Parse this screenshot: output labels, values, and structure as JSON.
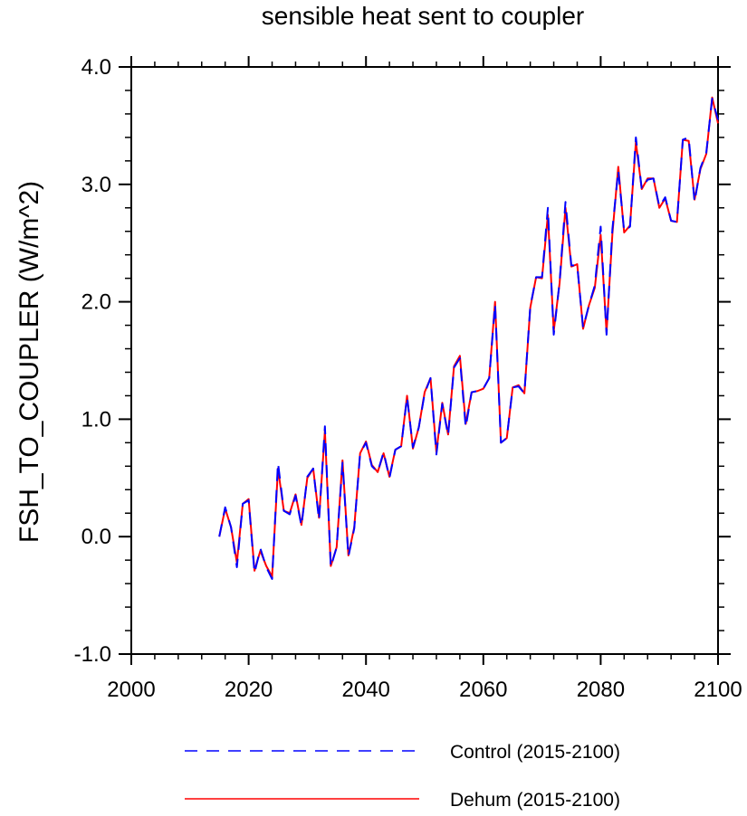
{
  "chart_data": {
    "type": "line",
    "title": "sensible heat sent to coupler",
    "xlabel": "",
    "ylabel": "FSH_TO_COUPLER  (W/m^2)",
    "xlim": [
      2000,
      2100
    ],
    "ylim": [
      -1.0,
      4.0
    ],
    "xticks": [
      2000,
      2020,
      2040,
      2060,
      2080,
      2100
    ],
    "xtick_labels": [
      "2000",
      "2020",
      "2040",
      "2060",
      "2080",
      "2100"
    ],
    "yticks": [
      -1.0,
      0.0,
      1.0,
      2.0,
      3.0,
      4.0
    ],
    "ytick_labels": [
      "-1.0",
      "0.0",
      "1.0",
      "2.0",
      "3.0",
      "4.0"
    ],
    "grid": false,
    "legend_position": "bottom",
    "x": [
      2015,
      2016,
      2017,
      2018,
      2019,
      2020,
      2021,
      2022,
      2023,
      2024,
      2025,
      2026,
      2027,
      2028,
      2029,
      2030,
      2031,
      2032,
      2033,
      2034,
      2035,
      2036,
      2037,
      2038,
      2039,
      2040,
      2041,
      2042,
      2043,
      2044,
      2045,
      2046,
      2047,
      2048,
      2049,
      2050,
      2051,
      2052,
      2053,
      2054,
      2055,
      2056,
      2057,
      2058,
      2059,
      2060,
      2061,
      2062,
      2063,
      2064,
      2065,
      2066,
      2067,
      2068,
      2069,
      2070,
      2071,
      2072,
      2073,
      2074,
      2075,
      2076,
      2077,
      2078,
      2079,
      2080,
      2081,
      2082,
      2083,
      2084,
      2085,
      2086,
      2087,
      2088,
      2089,
      2090,
      2091,
      2092,
      2093,
      2094,
      2095,
      2096,
      2097,
      2098,
      2099,
      2100
    ],
    "series": [
      {
        "name": "Control (2015-2100)",
        "color": "#0000ff",
        "style": "dashed",
        "values": [
          0.0,
          0.25,
          0.08,
          -0.26,
          0.28,
          0.31,
          -0.31,
          -0.1,
          -0.26,
          -0.36,
          0.63,
          0.22,
          0.19,
          0.35,
          0.09,
          0.51,
          0.58,
          0.14,
          0.94,
          -0.26,
          -0.09,
          0.63,
          -0.17,
          0.07,
          0.71,
          0.8,
          0.6,
          0.55,
          0.72,
          0.5,
          0.74,
          0.77,
          1.19,
          0.76,
          0.93,
          1.22,
          1.35,
          0.7,
          1.13,
          0.86,
          1.44,
          1.52,
          0.93,
          1.23,
          1.24,
          1.26,
          1.35,
          1.98,
          0.8,
          0.84,
          1.27,
          1.28,
          1.22,
          1.96,
          2.21,
          2.21,
          2.8,
          1.72,
          2.17,
          2.85,
          2.31,
          2.31,
          1.78,
          1.97,
          2.14,
          2.64,
          1.72,
          2.62,
          3.12,
          2.6,
          2.64,
          3.4,
          2.96,
          3.04,
          3.05,
          2.81,
          2.89,
          2.69,
          2.68,
          3.38,
          3.4,
          2.85,
          3.14,
          3.27,
          3.73,
          3.55
        ]
      },
      {
        "name": "Dehum (2015-2100)",
        "color": "#ff0000",
        "style": "solid",
        "values": [
          0.0,
          0.24,
          0.08,
          -0.22,
          0.28,
          0.32,
          -0.29,
          -0.12,
          -0.25,
          -0.34,
          0.58,
          0.22,
          0.2,
          0.36,
          0.1,
          0.5,
          0.58,
          0.16,
          0.9,
          -0.25,
          -0.09,
          0.65,
          -0.16,
          0.08,
          0.71,
          0.81,
          0.61,
          0.55,
          0.71,
          0.51,
          0.74,
          0.77,
          1.2,
          0.75,
          0.93,
          1.23,
          1.35,
          0.72,
          1.14,
          0.87,
          1.45,
          1.54,
          0.96,
          1.23,
          1.24,
          1.26,
          1.35,
          2.0,
          0.8,
          0.84,
          1.27,
          1.29,
          1.22,
          1.95,
          2.21,
          2.2,
          2.74,
          1.75,
          2.16,
          2.8,
          2.3,
          2.32,
          1.77,
          1.97,
          2.12,
          2.57,
          1.74,
          2.58,
          3.15,
          2.59,
          2.65,
          3.36,
          2.96,
          3.05,
          3.05,
          2.8,
          2.88,
          2.69,
          2.68,
          3.38,
          3.37,
          2.87,
          3.13,
          3.26,
          3.74,
          3.52
        ]
      }
    ]
  }
}
